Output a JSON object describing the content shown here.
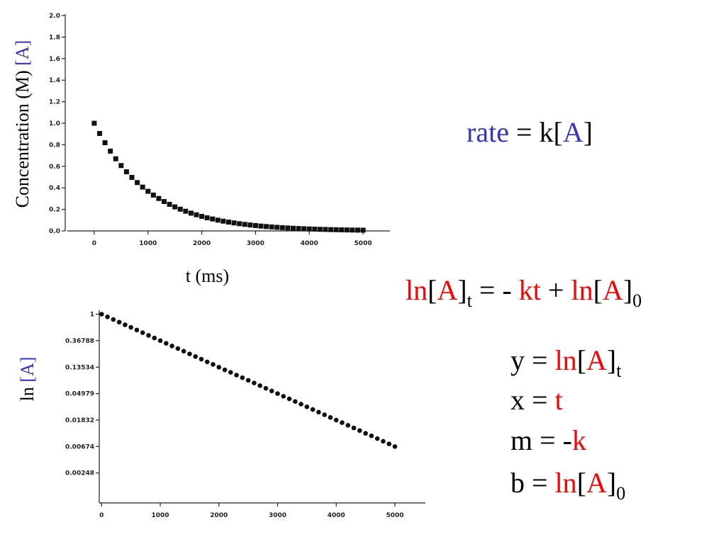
{
  "chart_data": [
    {
      "type": "scatter",
      "ylabel": [
        "Concentration (M) ",
        "[A]"
      ],
      "xlabel": "t (ms)",
      "ylabel_colors": [
        "#000000",
        "#3333cc"
      ],
      "color": "#111111",
      "marker": "square",
      "x": [
        0,
        100,
        200,
        300,
        400,
        500,
        600,
        700,
        800,
        900,
        1000,
        1100,
        1200,
        1300,
        1400,
        1500,
        1600,
        1700,
        1800,
        1900,
        2000,
        2100,
        2200,
        2300,
        2400,
        2500,
        2600,
        2700,
        2800,
        2900,
        3000,
        3100,
        3200,
        3300,
        3400,
        3500,
        3600,
        3700,
        3800,
        3900,
        4000,
        4100,
        4200,
        4300,
        4400,
        4500,
        4600,
        4700,
        4800,
        4900,
        5000
      ],
      "values": [
        1,
        0.905,
        0.819,
        0.741,
        0.67,
        0.607,
        0.549,
        0.497,
        0.449,
        0.407,
        0.368,
        0.333,
        0.301,
        0.273,
        0.247,
        0.223,
        0.202,
        0.183,
        0.165,
        0.15,
        0.135,
        0.122,
        0.111,
        0.1,
        0.0907,
        0.0821,
        0.0743,
        0.0672,
        0.0608,
        0.055,
        0.0498,
        0.045,
        0.0408,
        0.0369,
        0.0334,
        0.0302,
        0.0273,
        0.0247,
        0.0224,
        0.0202,
        0.0183,
        0.0166,
        0.015,
        0.0136,
        0.0123,
        0.0111,
        0.0101,
        0.0091,
        0.00823,
        0.00745,
        0.00674
      ],
      "xlim": [
        -500,
        5500
      ],
      "xticks": [
        0,
        1000,
        2000,
        3000,
        4000,
        5000
      ],
      "ylim": [
        0,
        2.0
      ],
      "yticks": [
        {
          "value": 0,
          "label": "0.0"
        },
        0.2,
        0.4,
        0.6,
        0.8,
        {
          "value": 1,
          "label": "1.0"
        },
        1.2,
        1.4,
        1.6,
        1.8,
        {
          "value": 2,
          "label": "2.0"
        }
      ]
    },
    {
      "type": "scatter",
      "ylabel": [
        "ln ",
        "[A]"
      ],
      "ylabel_colors": [
        "#000000",
        "#3333cc"
      ],
      "color": "#111111",
      "marker": "circle",
      "log_y": true,
      "x": [
        0,
        100,
        200,
        300,
        400,
        500,
        600,
        700,
        800,
        900,
        1000,
        1100,
        1200,
        1300,
        1400,
        1500,
        1600,
        1700,
        1800,
        1900,
        2000,
        2100,
        2200,
        2300,
        2400,
        2500,
        2600,
        2700,
        2800,
        2900,
        3000,
        3100,
        3200,
        3300,
        3400,
        3500,
        3600,
        3700,
        3800,
        3900,
        4000,
        4100,
        4200,
        4300,
        4400,
        4500,
        4600,
        4700,
        4800,
        4900,
        5000
      ],
      "values": [
        1,
        0.905,
        0.819,
        0.741,
        0.67,
        0.607,
        0.549,
        0.497,
        0.449,
        0.407,
        0.368,
        0.333,
        0.301,
        0.273,
        0.247,
        0.223,
        0.202,
        0.183,
        0.165,
        0.15,
        0.135,
        0.122,
        0.111,
        0.1,
        0.0907,
        0.0821,
        0.0743,
        0.0672,
        0.0608,
        0.055,
        0.0498,
        0.045,
        0.0408,
        0.0369,
        0.0334,
        0.0302,
        0.0273,
        0.0247,
        0.0224,
        0.0202,
        0.0183,
        0.0166,
        0.015,
        0.0136,
        0.0123,
        0.0111,
        0.0101,
        0.0091,
        0.00823,
        0.00745,
        0.00674
      ],
      "xlim": [
        -40,
        5520
      ],
      "xticks": [
        0,
        1000,
        2000,
        3000,
        4000,
        5000
      ],
      "ylim": [
        0.0008,
        1.1
      ],
      "yticks": [
        1,
        0.36788,
        0.13534,
        0.04979,
        0.01832,
        0.00674,
        0.00248
      ]
    }
  ],
  "equations": [
    [
      {
        "text": "rate",
        "color": "#3333cc"
      },
      {
        "text": " = k[",
        "color": "#000000"
      },
      {
        "text": "A",
        "color": "#3333cc"
      },
      {
        "text": "]",
        "color": "#000000"
      }
    ],
    [
      {
        "text": "ln",
        "color": "#ff0000"
      },
      {
        "text": "[",
        "color": "#000000"
      },
      {
        "text": "A",
        "color": "#ff0000"
      },
      {
        "text": "]",
        "color": "#000000"
      },
      {
        "text": "t",
        "color": "#000000",
        "sub": true
      },
      {
        "text": " = - ",
        "color": "#000000"
      },
      {
        "text": "kt",
        "color": "#ff0000"
      },
      {
        "text": " + ",
        "color": "#000000"
      },
      {
        "text": "ln",
        "color": "#ff0000"
      },
      {
        "text": "[",
        "color": "#000000"
      },
      {
        "text": "A",
        "color": "#ff0000"
      },
      {
        "text": "]",
        "color": "#000000"
      },
      {
        "text": "0",
        "color": "#000000",
        "sub": true
      }
    ],
    [
      {
        "text": "y = ",
        "color": "#000000"
      },
      {
        "text": "ln",
        "color": "#ff0000"
      },
      {
        "text": "[",
        "color": "#000000"
      },
      {
        "text": "A",
        "color": "#ff0000"
      },
      {
        "text": "]",
        "color": "#000000"
      },
      {
        "text": "t",
        "color": "#000000",
        "sub": true
      }
    ],
    [
      {
        "text": "x = ",
        "color": "#000000"
      },
      {
        "text": "t",
        "color": "#ff0000"
      }
    ],
    [
      {
        "text": "m = -",
        "color": "#000000"
      },
      {
        "text": "k",
        "color": "#ff0000"
      }
    ],
    [
      {
        "text": "b = ",
        "color": "#000000"
      },
      {
        "text": "ln",
        "color": "#ff0000"
      },
      {
        "text": "[",
        "color": "#000000"
      },
      {
        "text": "A",
        "color": "#ff0000"
      },
      {
        "text": "]",
        "color": "#000000"
      },
      {
        "text": "0",
        "color": "#000000",
        "sub": true
      }
    ]
  ]
}
